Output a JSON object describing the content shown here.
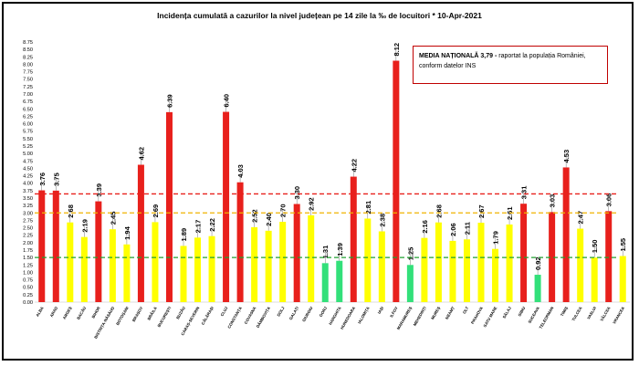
{
  "title": "Incidența cumulată a cazurilor la nivel județean pe 14 zile la ‰ de locuitori *   10-Apr-2021",
  "note": {
    "label": "MEDIA NAȚIONALĂ  3,79 -",
    "text": " raportat la populația României, conform datelor INS"
  },
  "colors": {
    "red": "#e8201c",
    "yellow": "#ffff00",
    "green": "#33e07a"
  },
  "chart_data": {
    "type": "bar",
    "title": "Incidența cumulată a cazurilor la nivel județean pe 14 zile la ‰ de locuitori *   10-Apr-2021",
    "ylim": [
      0,
      8.75
    ],
    "ytick_step": 0.25,
    "yticks": [
      "0.00",
      "0.25",
      "0.50",
      "0.75",
      "1.00",
      "1.25",
      "1.50",
      "1.75",
      "2.00",
      "2.25",
      "2.50",
      "2.75",
      "3.00",
      "3.25",
      "3.50",
      "3.75",
      "4.00",
      "4.25",
      "4.50",
      "4.75",
      "5.00",
      "5.25",
      "5.50",
      "5.75",
      "6.00",
      "6.25",
      "6.50",
      "6.75",
      "7.00",
      "7.25",
      "7.50",
      "7.75",
      "8.00",
      "8.25",
      "8.50",
      "8.75"
    ],
    "categories": [
      "ALBA",
      "ARAD",
      "ARGEȘ",
      "BACĂU",
      "BIHOR",
      "BISTRIȚA-NĂSĂUD",
      "BOTOȘANI",
      "BRAȘOV",
      "BRĂILA",
      "BUCUREȘTI",
      "BUZĂU",
      "CARAȘ-SEVERIN",
      "CĂLĂRAȘI",
      "CLUJ",
      "CONSTANȚA",
      "COVASNA",
      "DÂMBOVIȚA",
      "DOLJ",
      "GALAȚI",
      "GIURGIU",
      "GORJ",
      "HARGHITA",
      "HUNEDOARA",
      "IALOMIȚA",
      "IAȘI",
      "ILFOV",
      "MARAMUREȘ",
      "MEHEDINȚI",
      "MUREȘ",
      "NEAMȚ",
      "OLT",
      "PRAHOVA",
      "SATU MARE",
      "SĂLAJ",
      "SIBIU",
      "SUCEAVA",
      "TELEORMAN",
      "TIMIȘ",
      "TULCEA",
      "VASLUI",
      "VÂLCEA",
      "VRANCEA"
    ],
    "values": [
      3.76,
      3.75,
      2.68,
      2.19,
      3.39,
      2.45,
      1.94,
      4.62,
      2.69,
      6.39,
      1.89,
      2.17,
      2.22,
      6.4,
      4.03,
      2.52,
      2.4,
      2.7,
      3.3,
      2.92,
      1.31,
      1.39,
      4.22,
      2.81,
      2.38,
      8.12,
      1.25,
      2.16,
      2.68,
      2.06,
      2.11,
      2.67,
      1.79,
      2.61,
      3.31,
      0.92,
      3.03,
      4.53,
      2.47,
      1.5,
      3.06,
      1.55
    ],
    "value_labels": [
      "3.76",
      "3.75",
      "2.68",
      "2.19",
      "3.39",
      "2.45",
      "1.94",
      "4.62",
      "2.69",
      "6.39",
      "1.89",
      "2.17",
      "2.22",
      "6.40",
      "4.03",
      "2.52",
      "2.40",
      "2.70",
      "3.30",
      "2.92",
      "1.31",
      "1.39",
      "4.22",
      "2.81",
      "2.38",
      "8.12",
      "1.25",
      "2.16",
      "2.68",
      "2.06",
      "2.11",
      "2.67",
      "1.79",
      "2.61",
      "3.31",
      "0.92",
      "3.03",
      "4.53",
      "2.47",
      "1.50",
      "3.06",
      "1.55"
    ],
    "bar_colors": [
      "red",
      "red",
      "yellow",
      "yellow",
      "red",
      "yellow",
      "yellow",
      "red",
      "yellow",
      "red",
      "yellow",
      "yellow",
      "yellow",
      "red",
      "red",
      "yellow",
      "yellow",
      "yellow",
      "red",
      "yellow",
      "green",
      "green",
      "red",
      "yellow",
      "yellow",
      "red",
      "green",
      "yellow",
      "yellow",
      "yellow",
      "yellow",
      "yellow",
      "yellow",
      "yellow",
      "red",
      "green",
      "red",
      "red",
      "yellow",
      "yellow",
      "red",
      "yellow"
    ],
    "threshold_lines": [
      {
        "value": 3.64,
        "color": "#e8201c"
      },
      {
        "value": 3.0,
        "color": "#f0b400"
      },
      {
        "value": 1.5,
        "color": "#20a030"
      }
    ],
    "grid": false
  }
}
